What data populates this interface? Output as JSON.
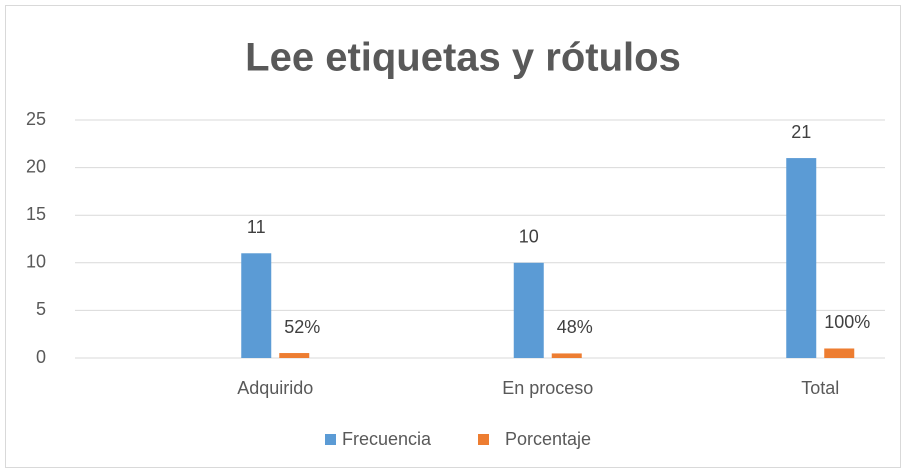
{
  "chart_data": {
    "type": "bar",
    "title": "Lee  etiquetas y rótulos",
    "categories": [
      "Adquirido",
      "En proceso",
      "Total"
    ],
    "series": [
      {
        "name": "Frecuencia",
        "color": "#5b9bd5",
        "values": [
          11,
          10,
          21
        ]
      },
      {
        "name": "Porcentaje",
        "color": "#ed7d31",
        "values": [
          0.52,
          0.48,
          1
        ],
        "value_labels": [
          "52%",
          "48%",
          "100%"
        ]
      }
    ],
    "ylim": [
      0,
      25
    ],
    "yticks": [
      0,
      5,
      10,
      15,
      20,
      25
    ],
    "grid": true,
    "legend": "bottom"
  }
}
